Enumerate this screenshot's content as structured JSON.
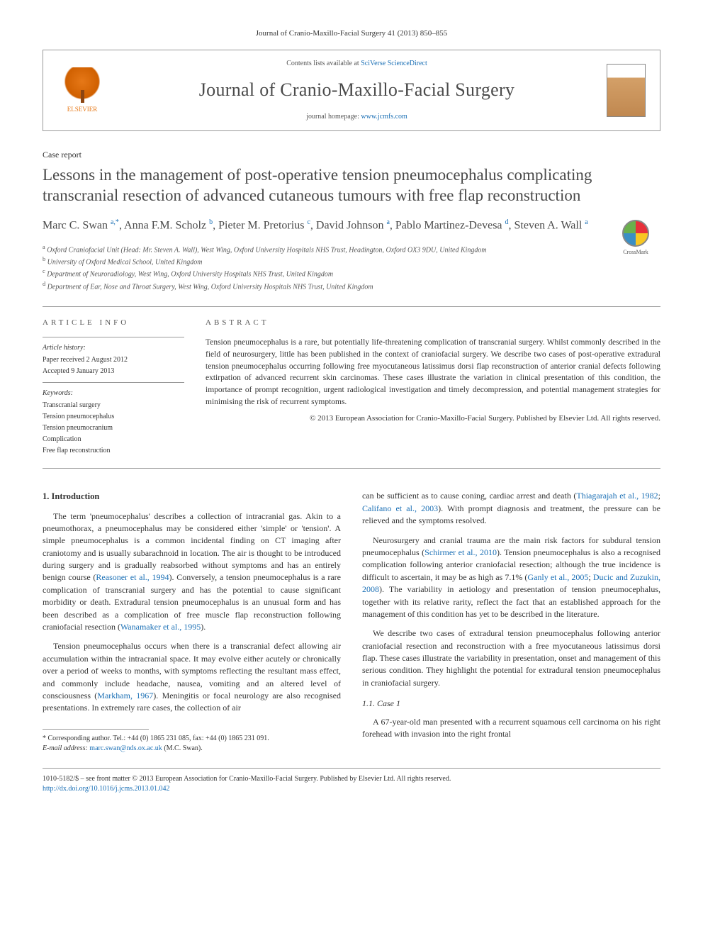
{
  "citation": "Journal of Cranio-Maxillo-Facial Surgery 41 (2013) 850–855",
  "header": {
    "publisher": "ELSEVIER",
    "contents_prefix": "Contents lists available at ",
    "contents_link": "SciVerse ScienceDirect",
    "journal_title": "Journal of Cranio-Maxillo-Facial Surgery",
    "homepage_prefix": "journal homepage: ",
    "homepage_link": "www.jcmfs.com"
  },
  "article_type": "Case report",
  "title": "Lessons in the management of post-operative tension pneumocephalus complicating transcranial resection of advanced cutaneous tumours with free flap reconstruction",
  "crossmark": "CrossMark",
  "authors_html": "Marc C. Swan <sup>a,*</sup>, Anna F.M. Scholz <sup>b</sup>, Pieter M. Pretorius <sup>c</sup>, David Johnson <sup>a</sup>, Pablo Martinez-Devesa <sup>d</sup>, Steven A. Wall <sup>a</sup>",
  "affiliations": [
    {
      "sup": "a",
      "text": "Oxford Craniofacial Unit (Head: Mr. Steven A. Wall), West Wing, Oxford University Hospitals NHS Trust, Headington, Oxford OX3 9DU, United Kingdom"
    },
    {
      "sup": "b",
      "text": "University of Oxford Medical School, United Kingdom"
    },
    {
      "sup": "c",
      "text": "Department of Neuroradiology, West Wing, Oxford University Hospitals NHS Trust, United Kingdom"
    },
    {
      "sup": "d",
      "text": "Department of Ear, Nose and Throat Surgery, West Wing, Oxford University Hospitals NHS Trust, United Kingdom"
    }
  ],
  "article_info": {
    "header": "ARTICLE INFO",
    "history_label": "Article history:",
    "received": "Paper received 2 August 2012",
    "accepted": "Accepted 9 January 2013",
    "keywords_label": "Keywords:",
    "keywords": [
      "Transcranial surgery",
      "Tension pneumocephalus",
      "Tension pneumocranium",
      "Complication",
      "Free flap reconstruction"
    ]
  },
  "abstract": {
    "header": "ABSTRACT",
    "text": "Tension pneumocephalus is a rare, but potentially life-threatening complication of transcranial surgery. Whilst commonly described in the field of neurosurgery, little has been published in the context of craniofacial surgery. We describe two cases of post-operative extradural tension pneumocephalus occurring following free myocutaneous latissimus dorsi flap reconstruction of anterior cranial defects following extirpation of advanced recurrent skin carcinomas. These cases illustrate the variation in clinical presentation of this condition, the importance of prompt recognition, urgent radiological investigation and timely decompression, and potential management strategies for minimising the risk of recurrent symptoms.",
    "copyright": "© 2013 European Association for Cranio-Maxillo-Facial Surgery. Published by Elsevier Ltd. All rights reserved."
  },
  "body": {
    "intro_heading": "1. Introduction",
    "para1": "The term 'pneumocephalus' describes a collection of intracranial gas. Akin to a pneumothorax, a pneumocephalus may be considered either 'simple' or 'tension'. A simple pneumocephalus is a common incidental finding on CT imaging after craniotomy and is usually subarachnoid in location. The air is thought to be introduced during surgery and is gradually reabsorbed without symptoms and has an entirely benign course (",
    "cite1": "Reasoner et al., 1994",
    "para1b": "). Conversely, a tension pneumocephalus is a rare complication of transcranial surgery and has the potential to cause significant morbidity or death. Extradural tension pneumocephalus is an unusual form and has been described as a complication of free muscle flap reconstruction following craniofacial resection (",
    "cite2": "Wanamaker et al., 1995",
    "para1c": ").",
    "para2": "Tension pneumocephalus occurs when there is a transcranial defect allowing air accumulation within the intracranial space. It may evolve either acutely or chronically over a period of weeks to months, with symptoms reflecting the resultant mass effect, and commonly include headache, nausea, vomiting and an altered level of consciousness (",
    "cite3": "Markham, 1967",
    "para2b": "). Meningitis or focal neurology are also recognised presentations. In extremely rare cases, the collection of air",
    "para3a": "can be sufficient as to cause coning, cardiac arrest and death (",
    "cite4": "Thiagarajah et al., 1982",
    "cite4sep": "; ",
    "cite5": "Califano et al., 2003",
    "para3b": "). With prompt diagnosis and treatment, the pressure can be relieved and the symptoms resolved.",
    "para4a": "Neurosurgery and cranial trauma are the main risk factors for subdural tension pneumocephalus (",
    "cite6": "Schirmer et al., 2010",
    "para4b": "). Tension pneumocephalus is also a recognised complication following anterior craniofacial resection; although the true incidence is difficult to ascertain, it may be as high as 7.1% (",
    "cite7": "Ganly et al., 2005",
    "cite7sep": "; ",
    "cite8": "Ducic and Zuzukin, 2008",
    "para4c": "). The variability in aetiology and presentation of tension pneumocephalus, together with its relative rarity, reflect the fact that an established approach for the management of this condition has yet to be described in the literature.",
    "para5": "We describe two cases of extradural tension pneumocephalus following anterior craniofacial resection and reconstruction with a free myocutaneous latissimus dorsi flap. These cases illustrate the variability in presentation, onset and management of this serious condition. They highlight the potential for extradural tension pneumocephalus in craniofacial surgery.",
    "case1_heading": "1.1. Case 1",
    "case1_para": "A 67-year-old man presented with a recurrent squamous cell carcinoma on his right forehead with invasion into the right frontal"
  },
  "footnote": {
    "corr": "* Corresponding author. Tel.: +44 (0) 1865 231 085, fax: +44 (0) 1865 231 091.",
    "email_label": "E-mail address: ",
    "email": "marc.swan@nds.ox.ac.uk",
    "email_suffix": " (M.C. Swan)."
  },
  "bottom": {
    "front_matter": "1010-5182/$ – see front matter © 2013 European Association for Cranio-Maxillo-Facial Surgery. Published by Elsevier Ltd. All rights reserved.",
    "doi": "http://dx.doi.org/10.1016/j.jcms.2013.01.042"
  },
  "colors": {
    "link": "#1a6fb5",
    "text": "#333333",
    "heading": "#4a4a4a",
    "border": "#999999",
    "elsevier": "#e67817"
  }
}
